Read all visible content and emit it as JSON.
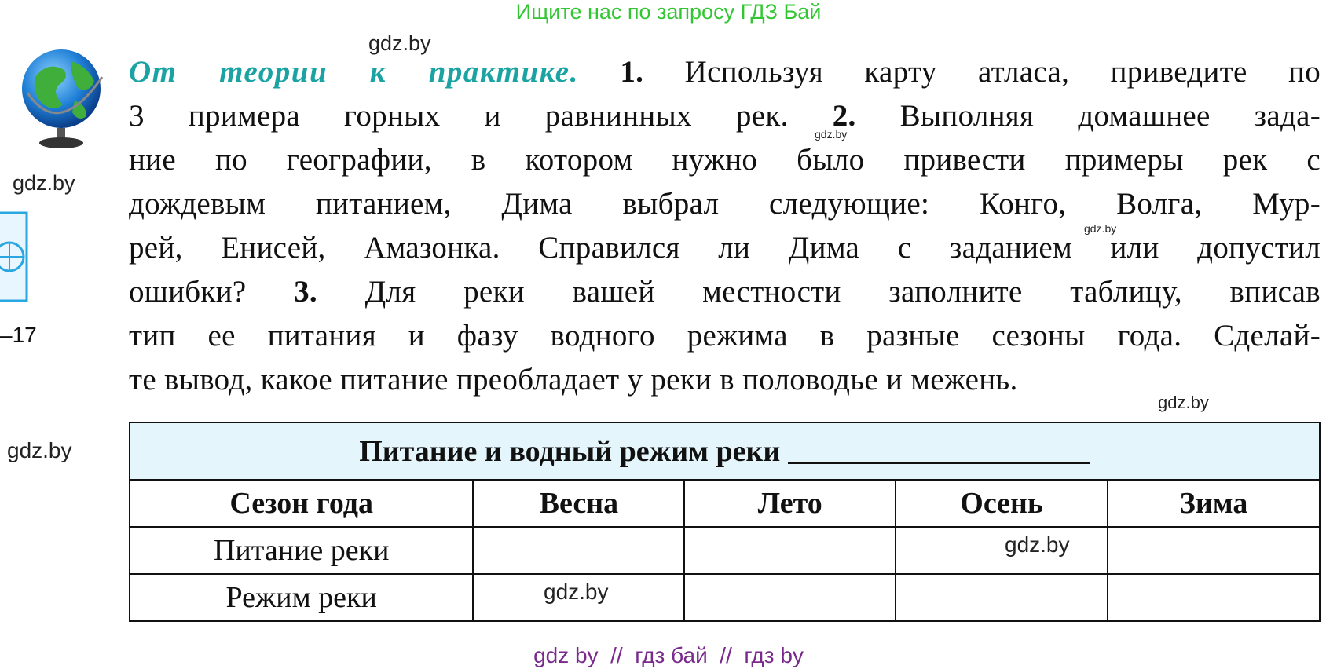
{
  "header": {
    "banner": "Ищите нас по запросу ГДЗ Бай"
  },
  "side": {
    "page_ref": "–17"
  },
  "watermarks": [
    "gdz.by",
    "gdz.by",
    "gdz.by",
    "gdz.by",
    "gdz.by",
    "gdz.by",
    "gdz.by",
    "gdz.by"
  ],
  "paragraph": {
    "lines": [
      [
        {
          "text": "От теории к практике.",
          "style": "heading"
        },
        {
          "text": " "
        },
        {
          "text": "1.",
          "style": "bold"
        },
        {
          "text": " Используя карту атласа, приведите по"
        }
      ],
      [
        {
          "text": "3 примера горных и равнинных рек. "
        },
        {
          "text": "2.",
          "style": "bold"
        },
        {
          "text": " Выполняя домашнее зада-"
        }
      ],
      [
        {
          "text": "ние по географии, в котором нужно было привести примеры рек с"
        }
      ],
      [
        {
          "text": "дождевым питанием, Дима выбрал следующие: Конго, Волга, Мур-"
        }
      ],
      [
        {
          "text": "рей, Енисей, Амазонка. Справился ли Дима с заданием или допустил"
        }
      ],
      [
        {
          "text": "ошибки? "
        },
        {
          "text": "3.",
          "style": "bold"
        },
        {
          "text": " Для реки вашей местности заполните таблицу, вписав"
        }
      ],
      [
        {
          "text": "тип ее питания и фазу водного режима в разные сезоны года. Сделай-"
        }
      ],
      [
        {
          "text": "те вывод, какое питание преобладает у реки в половодье и межень."
        }
      ]
    ]
  },
  "table": {
    "title": "Питание и водный режим реки",
    "columns": [
      "Сезон года",
      "Весна",
      "Лето",
      "Осень",
      "Зима"
    ],
    "rows": [
      "Питание реки",
      "Режим реки"
    ]
  },
  "footer": {
    "text": "gdz by  //  гдз бай  //  гдз by"
  }
}
